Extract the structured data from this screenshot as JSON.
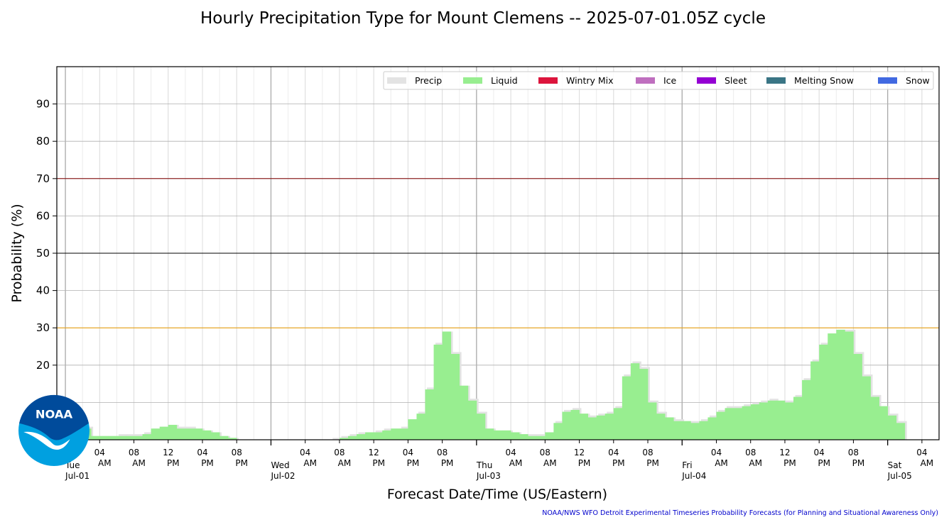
{
  "chart_data": {
    "type": "bar",
    "title": "Hourly Precipitation Type for Mount Clemens -- 2025-07-01.05Z cycle",
    "xlabel": "Forecast Date/Time (US/Eastern)",
    "ylabel": "Probability (%)",
    "ylim": [
      0,
      100
    ],
    "yticks": [
      20,
      30,
      40,
      50,
      60,
      70,
      80,
      90
    ],
    "grid": true,
    "legend_position": "top-right",
    "start_hour": "2025-07-01 01:00",
    "x_start": "2025-06-30T23:00",
    "x_end": "2025-07-05T06:00",
    "day_ticks": [
      {
        "t": "2025-07-01T00:00",
        "weekday": "Tue",
        "date": "Jul-01"
      },
      {
        "t": "2025-07-02T00:00",
        "weekday": "Wed",
        "date": "Jul-02"
      },
      {
        "t": "2025-07-03T00:00",
        "weekday": "Thu",
        "date": "Jul-03"
      },
      {
        "t": "2025-07-04T00:00",
        "weekday": "Fri",
        "date": "Jul-04"
      },
      {
        "t": "2025-07-05T00:00",
        "weekday": "Sat",
        "date": "Jul-05"
      }
    ],
    "hour_ticks": [
      {
        "t": "2025-07-01T04:00",
        "hour": "04",
        "ampm": "AM"
      },
      {
        "t": "2025-07-01T08:00",
        "hour": "08",
        "ampm": "AM"
      },
      {
        "t": "2025-07-01T12:00",
        "hour": "12",
        "ampm": "PM"
      },
      {
        "t": "2025-07-01T16:00",
        "hour": "04",
        "ampm": "PM"
      },
      {
        "t": "2025-07-01T20:00",
        "hour": "08",
        "ampm": "PM"
      },
      {
        "t": "2025-07-02T04:00",
        "hour": "04",
        "ampm": "AM"
      },
      {
        "t": "2025-07-02T08:00",
        "hour": "08",
        "ampm": "AM"
      },
      {
        "t": "2025-07-02T12:00",
        "hour": "12",
        "ampm": "PM"
      },
      {
        "t": "2025-07-02T16:00",
        "hour": "04",
        "ampm": "PM"
      },
      {
        "t": "2025-07-02T20:00",
        "hour": "08",
        "ampm": "PM"
      },
      {
        "t": "2025-07-03T04:00",
        "hour": "04",
        "ampm": "AM"
      },
      {
        "t": "2025-07-03T08:00",
        "hour": "08",
        "ampm": "AM"
      },
      {
        "t": "2025-07-03T12:00",
        "hour": "12",
        "ampm": "PM"
      },
      {
        "t": "2025-07-03T16:00",
        "hour": "04",
        "ampm": "PM"
      },
      {
        "t": "2025-07-03T20:00",
        "hour": "08",
        "ampm": "PM"
      },
      {
        "t": "2025-07-04T04:00",
        "hour": "04",
        "ampm": "AM"
      },
      {
        "t": "2025-07-04T08:00",
        "hour": "08",
        "ampm": "AM"
      },
      {
        "t": "2025-07-04T12:00",
        "hour": "12",
        "ampm": "PM"
      },
      {
        "t": "2025-07-04T16:00",
        "hour": "04",
        "ampm": "PM"
      },
      {
        "t": "2025-07-04T20:00",
        "hour": "08",
        "ampm": "PM"
      },
      {
        "t": "2025-07-05T04:00",
        "hour": "04",
        "ampm": "AM"
      }
    ],
    "reference_lines": [
      {
        "value": 30,
        "color": "#f0a000"
      },
      {
        "value": 50,
        "color": "#000000"
      },
      {
        "value": 70,
        "color": "#800000"
      }
    ],
    "legend": [
      {
        "name": "Precip",
        "color": "#e3e3e3"
      },
      {
        "name": "Liquid",
        "color": "#98ee90"
      },
      {
        "name": "Wintry Mix",
        "color": "#dc143c"
      },
      {
        "name": "Ice",
        "color": "#bf6fbf"
      },
      {
        "name": "Sleet",
        "color": "#9400d3"
      },
      {
        "name": "Melting Snow",
        "color": "#3a7585"
      },
      {
        "name": "Snow",
        "color": "#4169e1"
      }
    ],
    "series": [
      {
        "name": "Liquid",
        "color": "#98ee90",
        "values": [
          6,
          3,
          1,
          1,
          1,
          1,
          1,
          1,
          1.5,
          3,
          3.5,
          4,
          3,
          3,
          3,
          2.5,
          2,
          1,
          0.5,
          0,
          0,
          0,
          0,
          0,
          0,
          0,
          0,
          0,
          0,
          0,
          0,
          0.5,
          1,
          1.5,
          2,
          2,
          2.5,
          3,
          3,
          5.5,
          7,
          13.5,
          25.5,
          29,
          23,
          14.5,
          10.5,
          7,
          3,
          2.5,
          2.5,
          2,
          1.5,
          1,
          1,
          2,
          4.5,
          7.5,
          8,
          7,
          6,
          6.5,
          7,
          8.5,
          17,
          20.5,
          19,
          10,
          7,
          6,
          5,
          5,
          4.5,
          5,
          6,
          7.5,
          8.5,
          8.5,
          9,
          9.5,
          10,
          10.5,
          10.5,
          10,
          11.5,
          16,
          21,
          25.5,
          28.5,
          29.5,
          29,
          23,
          17,
          11.5,
          9,
          6.5,
          4.5
        ]
      },
      {
        "name": "Precip",
        "color": "#e3e3e3",
        "values": [
          6,
          3.5,
          1,
          1,
          1,
          1.5,
          1.5,
          1.5,
          2,
          3,
          3.5,
          4,
          3.5,
          3.5,
          3,
          2.5,
          2,
          1,
          0.5,
          0,
          0,
          0,
          0,
          0,
          0,
          0,
          0,
          0,
          0,
          0,
          0.5,
          1,
          1.5,
          2,
          2,
          2.5,
          3,
          3,
          3.5,
          5.5,
          7.5,
          14,
          26,
          29,
          23.5,
          14.5,
          11,
          7.5,
          3,
          2.5,
          2.5,
          2,
          1.5,
          1.5,
          1.5,
          2,
          5,
          8,
          8.5,
          7,
          6.5,
          7,
          7.5,
          9,
          17.5,
          21,
          19.5,
          10.5,
          7.5,
          6,
          5.5,
          5,
          5,
          5.5,
          6.5,
          8,
          9,
          9,
          9.5,
          10,
          10.5,
          11,
          10.5,
          10.5,
          12,
          16.5,
          21.5,
          26,
          28.5,
          29.5,
          29.5,
          23.5,
          17.5,
          12,
          9,
          7,
          5
        ]
      }
    ]
  },
  "footer": "NOAA/NWS WFO Detroit Experimental Timeseries Probability Forecasts (for Planning and Situational Awareness Only)",
  "logo": {
    "text": "NOAA",
    "primary_color": "#004b9b",
    "secondary_color": "#00a0e0"
  }
}
